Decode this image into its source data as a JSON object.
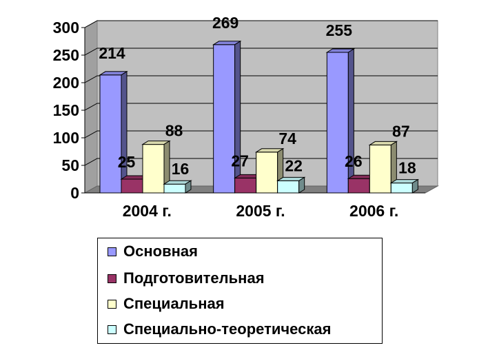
{
  "chart_data": {
    "type": "bar",
    "title": "",
    "xlabel": "",
    "ylabel": "",
    "ylim": [
      0,
      300
    ],
    "yticks": [
      0,
      50,
      100,
      150,
      200,
      250,
      300
    ],
    "categories": [
      "2004 г.",
      "2005 г.",
      "2006 г."
    ],
    "series": [
      {
        "name": "Основная",
        "values": [
          214,
          269,
          255
        ],
        "color": "#9999ff"
      },
      {
        "name": "Подготовительная",
        "values": [
          25,
          27,
          26
        ],
        "color": "#993366"
      },
      {
        "name": "Специальная",
        "values": [
          88,
          74,
          87
        ],
        "color": "#ffffcc"
      },
      {
        "name": "Специально-теоретическая",
        "values": [
          16,
          22,
          18
        ],
        "color": "#ccffff"
      }
    ],
    "grid": true,
    "three_d": true,
    "wall_color": "#c0c0c0",
    "legend_position": "bottom"
  }
}
